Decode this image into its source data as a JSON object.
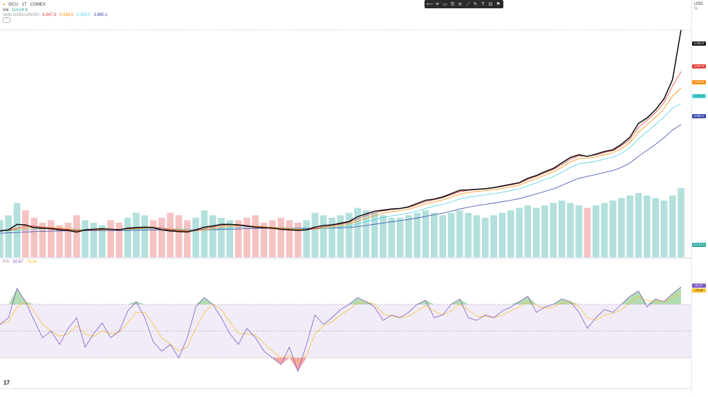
{
  "legend": {
    "symbol": "GC1! · 1T · COMEX",
    "vol_label": "Vol",
    "vol_value": "114,04 K",
    "sma_label": "SMA 20/50/100/200",
    "sma_values": [
      "4.847,9",
      "4.546,5",
      "4.259,5",
      "3.880,1"
    ],
    "rsi_label": "RSI",
    "rsi_values": [
      "82,67",
      "78,38"
    ]
  },
  "toolbar": {
    "icons": [
      "cursor-icon",
      "crosshair-icon",
      "rectangle-icon",
      "bars-icon",
      "lines-icon",
      "trend-icon",
      "brush-icon",
      "text-icon",
      "ruler-icon",
      "flag-icon"
    ]
  },
  "scale": {
    "currency": "USD",
    "percent_label": "%"
  },
  "price_boxes": {
    "last_price": "5.608,9",
    "sma20": "4.847,9",
    "sma50": "4.546,5",
    "sma100": "4.259,5",
    "sma200": "3.880,1",
    "volume": "114,04 K",
    "rsi": "82,67",
    "rsi_ma": "78,38"
  },
  "colors": {
    "price": "#111111",
    "sma20": "#e53935",
    "sma50": "#fb8c00",
    "sma100": "#4dd0e1",
    "sma200": "#3949ab",
    "vol_up": "#80cbc4",
    "vol_down": "#ef9a9a",
    "rsi_line": "#7e57c2",
    "rsi_ma": "#fbc02d",
    "rsi_band": "#ede7f6"
  },
  "chart_data": [
    {
      "type": "line",
      "series": [
        {
          "name": "GC1!",
          "x": [
            0,
            5,
            10,
            15,
            20,
            25,
            30,
            35,
            40,
            45,
            50,
            55,
            60,
            65,
            70,
            75,
            80,
            85,
            90,
            95,
            100,
            105,
            110,
            115,
            120,
            125,
            130,
            135,
            140,
            145,
            150,
            155,
            160,
            165,
            170,
            175,
            180,
            185,
            190,
            195,
            200,
            205,
            210,
            215,
            220,
            225,
            230,
            235,
            240,
            245,
            250,
            255,
            260,
            265,
            270,
            275,
            280,
            285,
            290,
            295,
            300,
            305,
            310,
            315,
            320,
            325,
            330,
            335,
            340,
            345,
            350,
            355,
            360,
            365,
            370,
            375,
            380,
            385,
            390,
            395,
            400
          ],
          "values": [
            1940,
            1960,
            2060,
            2050,
            2000,
            1990,
            1980,
            1960,
            1950,
            1920,
            1960,
            1970,
            1980,
            1970,
            1960,
            1990,
            2000,
            2010,
            2000,
            1960,
            1940,
            1930,
            1920,
            1960,
            2010,
            2030,
            2060,
            2060,
            2050,
            2030,
            2010,
            2000,
            1990,
            1970,
            1960,
            1950,
            1960,
            2010,
            2040,
            2050,
            2080,
            2110,
            2200,
            2250,
            2300,
            2320,
            2340,
            2350,
            2380,
            2440,
            2500,
            2520,
            2560,
            2620,
            2680,
            2690,
            2700,
            2710,
            2730,
            2760,
            2790,
            2820,
            2900,
            2950,
            3020,
            3080,
            3180,
            3280,
            3330,
            3300,
            3340,
            3390,
            3420,
            3520,
            3650,
            3900,
            4000,
            4150,
            4350,
            4700,
            5608
          ]
        },
        {
          "name": "SMA 20",
          "values": [
            1950,
            1955,
            1990,
            2030,
            2030,
            2010,
            1995,
            1980,
            1965,
            1945,
            1950,
            1960,
            1970,
            1975,
            1970,
            1980,
            1990,
            2000,
            2005,
            1990,
            1960,
            1945,
            1935,
            1945,
            1980,
            2010,
            2040,
            2055,
            2055,
            2040,
            2020,
            2005,
            1995,
            1980,
            1970,
            1958,
            1958,
            1985,
            2015,
            2040,
            2065,
            2095,
            2160,
            2220,
            2270,
            2305,
            2330,
            2345,
            2370,
            2420,
            2475,
            2510,
            2545,
            2600,
            2655,
            2680,
            2695,
            2708,
            2725,
            2750,
            2780,
            2810,
            2880,
            2935,
            3000,
            3060,
            3150,
            3250,
            3310,
            3305,
            3325,
            3370,
            3405,
            3490,
            3610,
            3830,
            3960,
            4100,
            4280,
            4580,
            4848
          ]
        },
        {
          "name": "SMA 50",
          "values": [
            1945,
            1950,
            1970,
            1995,
            2005,
            2005,
            2000,
            1990,
            1975,
            1960,
            1955,
            1958,
            1962,
            1966,
            1968,
            1974,
            1980,
            1988,
            1995,
            1990,
            1975,
            1960,
            1948,
            1945,
            1958,
            1980,
            2005,
            2025,
            2035,
            2035,
            2025,
            2015,
            2005,
            1992,
            1980,
            1970,
            1965,
            1975,
            1995,
            2015,
            2040,
            2065,
            2115,
            2170,
            2220,
            2260,
            2290,
            2310,
            2335,
            2380,
            2430,
            2470,
            2505,
            2555,
            2610,
            2640,
            2660,
            2675,
            2690,
            2715,
            2745,
            2775,
            2840,
            2895,
            2955,
            3015,
            3100,
            3195,
            3260,
            3270,
            3290,
            3330,
            3365,
            3440,
            3550,
            3740,
            3880,
            4010,
            4170,
            4400,
            4546
          ]
        },
        {
          "name": "SMA 100",
          "values": [
            1940,
            1942,
            1950,
            1965,
            1975,
            1980,
            1982,
            1980,
            1975,
            1968,
            1962,
            1960,
            1960,
            1961,
            1962,
            1965,
            1970,
            1976,
            1982,
            1983,
            1978,
            1970,
            1962,
            1958,
            1960,
            1968,
            1980,
            1992,
            2002,
            2008,
            2010,
            2008,
            2004,
            1998,
            1990,
            1983,
            1977,
            1978,
            1986,
            1998,
            2012,
            2030,
            2068,
            2110,
            2150,
            2185,
            2215,
            2240,
            2265,
            2305,
            2350,
            2390,
            2425,
            2470,
            2520,
            2555,
            2580,
            2600,
            2620,
            2645,
            2675,
            2705,
            2765,
            2815,
            2875,
            2930,
            3010,
            3100,
            3165,
            3185,
            3210,
            3250,
            3285,
            3355,
            3455,
            3620,
            3750,
            3880,
            4020,
            4180,
            4260
          ]
        },
        {
          "name": "SMA 200",
          "values": [
            1900,
            1905,
            1912,
            1920,
            1928,
            1934,
            1938,
            1941,
            1943,
            1944,
            1944,
            1944,
            1944,
            1945,
            1946,
            1948,
            1951,
            1954,
            1958,
            1961,
            1962,
            1962,
            1961,
            1960,
            1960,
            1962,
            1966,
            1971,
            1977,
            1982,
            1986,
            1989,
            1991,
            1992,
            1991,
            1990,
            1988,
            1987,
            1988,
            1991,
            1996,
            2003,
            2020,
            2040,
            2062,
            2084,
            2106,
            2127,
            2148,
            2175,
            2205,
            2236,
            2265,
            2300,
            2340,
            2373,
            2400,
            2424,
            2447,
            2472,
            2500,
            2528,
            2572,
            2615,
            2662,
            2708,
            2770,
            2840,
            2900,
            2935,
            2968,
            3006,
            3042,
            3100,
            3180,
            3300,
            3410,
            3520,
            3640,
            3780,
            3880
          ]
        }
      ],
      "ylim": [
        1800,
        5900
      ]
    },
    {
      "type": "bar",
      "series": [
        {
          "name": "Vol",
          "values": [
            150,
            170,
            220,
            190,
            160,
            140,
            150,
            130,
            140,
            170,
            150,
            140,
            130,
            150,
            140,
            160,
            180,
            170,
            150,
            160,
            180,
            170,
            150,
            160,
            190,
            170,
            160,
            150,
            150,
            160,
            170,
            140,
            150,
            160,
            150,
            140,
            150,
            180,
            170,
            160,
            170,
            180,
            200,
            190,
            180,
            170,
            160,
            160,
            170,
            180,
            190,
            180,
            170,
            180,
            190,
            180,
            170,
            160,
            170,
            180,
            190,
            200,
            210,
            200,
            210,
            220,
            230,
            220,
            210,
            200,
            210,
            220,
            230,
            240,
            250,
            260,
            250,
            240,
            230,
            250,
            280
          ]
        }
      ]
    },
    {
      "type": "line",
      "series": [
        {
          "name": "RSI",
          "values": [
            55,
            60,
            82,
            72,
            58,
            45,
            50,
            40,
            52,
            60,
            38,
            48,
            56,
            45,
            50,
            65,
            72,
            60,
            42,
            35,
            40,
            30,
            45,
            68,
            75,
            70,
            60,
            48,
            40,
            52,
            45,
            35,
            30,
            25,
            38,
            20,
            40,
            62,
            55,
            60,
            66,
            70,
            75,
            72,
            68,
            58,
            62,
            60,
            64,
            70,
            73,
            60,
            62,
            70,
            74,
            60,
            58,
            62,
            60,
            65,
            68,
            72,
            76,
            64,
            68,
            70,
            74,
            72,
            64,
            52,
            60,
            66,
            64,
            70,
            76,
            80,
            68,
            74,
            72,
            78,
            83
          ]
        },
        {
          "name": "RSI MA",
          "values": [
            55,
            57,
            68,
            72,
            65,
            55,
            50,
            46,
            48,
            54,
            48,
            46,
            50,
            48,
            49,
            56,
            64,
            64,
            55,
            45,
            40,
            35,
            38,
            52,
            64,
            70,
            66,
            57,
            48,
            48,
            47,
            41,
            35,
            30,
            32,
            27,
            32,
            48,
            54,
            57,
            62,
            66,
            71,
            72,
            70,
            63,
            61,
            60,
            61,
            65,
            69,
            65,
            62,
            65,
            70,
            66,
            61,
            61,
            60,
            62,
            65,
            68,
            72,
            69,
            67,
            68,
            71,
            72,
            68,
            60,
            58,
            62,
            63,
            66,
            71,
            76,
            73,
            72,
            72,
            75,
            78
          ]
        }
      ],
      "ylim": [
        10,
        100
      ],
      "bands": [
        30,
        50,
        70
      ]
    }
  ]
}
